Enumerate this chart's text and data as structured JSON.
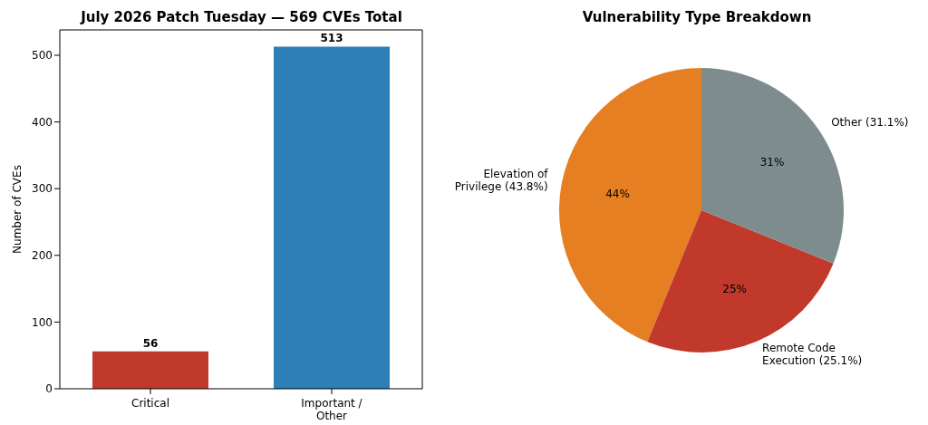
{
  "chart_data": [
    {
      "type": "bar",
      "title": "July 2026 Patch Tuesday — 569 CVEs Total",
      "ylabel": "Number of CVEs",
      "categories": [
        "Critical",
        "Important /\nOther"
      ],
      "values": [
        56,
        513
      ],
      "colors": [
        "#c0392b",
        "#2e7fb8"
      ],
      "ylim": [
        0,
        538
      ],
      "yticks": [
        0,
        100,
        200,
        300,
        400,
        500
      ],
      "data_labels": true
    },
    {
      "type": "pie",
      "title": "Vulnerability Type Breakdown",
      "categories": [
        "Elevation of\nPrivilege (43.8%)",
        "Remote Code\nExecution (25.1%)",
        "Other (31.1%)"
      ],
      "values": [
        43.8,
        25.1,
        31.1
      ],
      "colors": [
        "#e67e22",
        "#c0392b",
        "#7f8c8d"
      ],
      "value_labels": [
        "44%",
        "25%",
        "31%"
      ]
    }
  ]
}
